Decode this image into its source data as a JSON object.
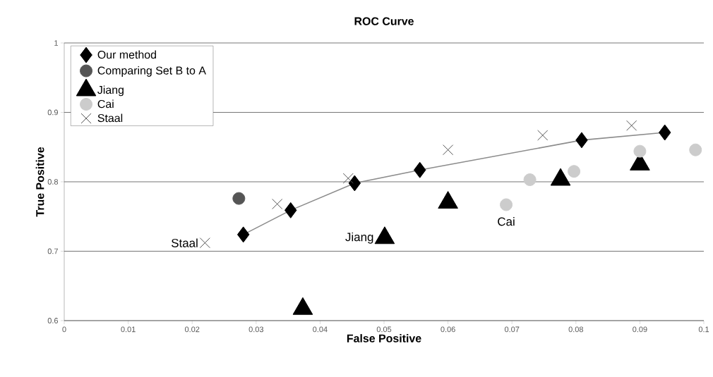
{
  "chart_data": {
    "type": "scatter",
    "title": "ROC Curve",
    "xlabel": "False Positive",
    "ylabel": "True Positive",
    "xlim": [
      0,
      0.1
    ],
    "ylim": [
      0.6,
      1
    ],
    "xticks": [
      0,
      0.01,
      0.02,
      0.03,
      0.04,
      0.05,
      0.06,
      0.07,
      0.08,
      0.09,
      0.1
    ],
    "yticks": [
      0.6,
      0.7,
      0.8,
      0.9,
      1
    ],
    "grid": "y",
    "legend": "top left",
    "series": [
      {
        "name": "Our method",
        "type": "line",
        "marker": "diamond",
        "color": "#000000",
        "x": [
          0.028,
          0.0354,
          0.0454,
          0.0556,
          0.0809,
          0.0939
        ],
        "values": [
          0.724,
          0.759,
          0.798,
          0.817,
          0.86,
          0.871
        ]
      },
      {
        "name": "Comparing Set B to A",
        "marker": "circle",
        "color": "#555555",
        "x": [
          0.0273
        ],
        "values": [
          0.776
        ]
      },
      {
        "name": "Jiang",
        "marker": "triangle",
        "color": "#000000",
        "x": [
          0.0373,
          0.0501,
          0.06,
          0.0776,
          0.09
        ],
        "values": [
          0.617,
          0.719,
          0.77,
          0.803,
          0.825
        ]
      },
      {
        "name": "Cai",
        "marker": "circle",
        "color": "#cccccc",
        "x": [
          0.0691,
          0.0728,
          0.0797,
          0.09,
          0.0987
        ],
        "values": [
          0.767,
          0.803,
          0.815,
          0.844,
          0.846
        ]
      },
      {
        "name": "Staal",
        "marker": "cross",
        "color": "#555555",
        "x": [
          0.022,
          0.0333,
          0.0444,
          0.06,
          0.0748,
          0.0887
        ],
        "values": [
          0.712,
          0.768,
          0.805,
          0.846,
          0.867,
          0.881
        ]
      }
    ],
    "annotations": [
      {
        "text": "Staal",
        "x": 0.022,
        "y": 0.712
      },
      {
        "text": "Jiang",
        "x": 0.0501,
        "y": 0.719
      },
      {
        "text": "Cai",
        "x": 0.0691,
        "y": 0.767
      }
    ]
  }
}
